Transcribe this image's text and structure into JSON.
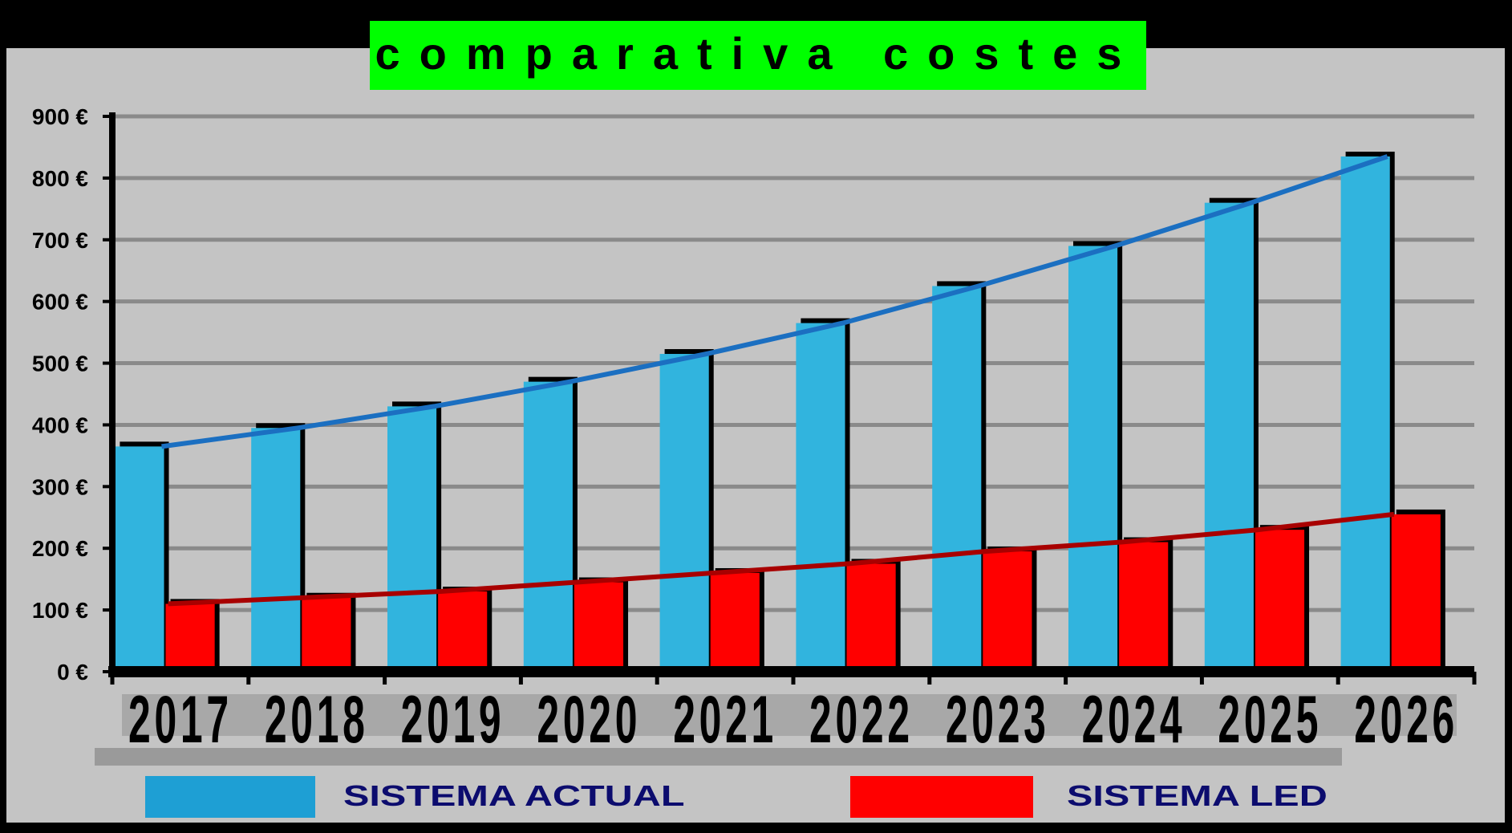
{
  "chart_data": {
    "type": "bar",
    "title": "comparativa costes",
    "categories": [
      "2017",
      "2018",
      "2019",
      "2020",
      "2021",
      "2022",
      "2023",
      "2024",
      "2025",
      "2026"
    ],
    "series": [
      {
        "name": "SISTEMA ACTUAL",
        "values": [
          365,
          395,
          430,
          470,
          515,
          565,
          625,
          690,
          760,
          835
        ],
        "color": "#31b4de",
        "trend_color": "#1b6fc1"
      },
      {
        "name": "SISTEMA LED",
        "values": [
          110,
          120,
          130,
          145,
          160,
          175,
          195,
          210,
          230,
          255
        ],
        "color": "#ff0000",
        "trend_color": "#a80000"
      }
    ],
    "y_tick_labels": [
      "0 €",
      "100 €",
      "200 €",
      "300 €",
      "400 €",
      "500 €",
      "600 €",
      "700 €",
      "800 €",
      "900 €"
    ],
    "ylim": [
      0,
      900
    ],
    "grid": true,
    "legend_position": "bottom",
    "colors": {
      "background": "#000000",
      "plot_area": "#c4c4c4",
      "gridline": "#8a8a8a",
      "title_box": "#00ff00",
      "title_text": "#000000",
      "legend_text": "#0c0c6e"
    }
  }
}
